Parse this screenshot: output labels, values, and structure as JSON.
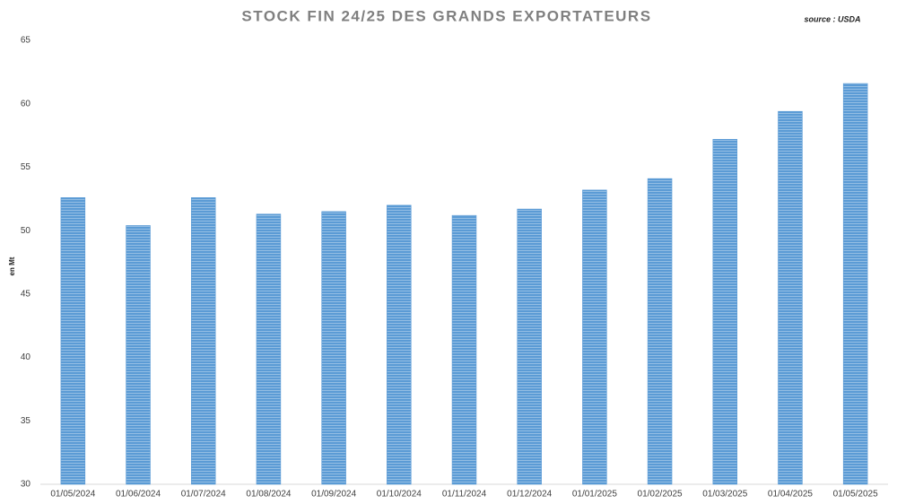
{
  "chart_data": {
    "type": "bar",
    "title": "STOCK FIN 24/25 DES GRANDS EXPORTATEURS",
    "source": "source : USDA",
    "y_label": "en Mt",
    "categories": [
      "01/05/2024",
      "01/06/2024",
      "01/07/2024",
      "01/08/2024",
      "01/09/2024",
      "01/10/2024",
      "01/11/2024",
      "01/12/2024",
      "01/01/2025",
      "01/02/2025",
      "01/03/2025",
      "01/04/2025",
      "01/05/2025"
    ],
    "values": [
      52.6,
      50.4,
      52.6,
      51.3,
      51.5,
      52.0,
      51.2,
      51.7,
      53.2,
      54.1,
      57.2,
      59.4,
      61.6
    ],
    "color": "#5b9bd5",
    "ylim": [
      30,
      65
    ],
    "yticks": [
      30,
      35,
      40,
      45,
      50,
      55,
      60,
      65
    ],
    "grid": false
  }
}
